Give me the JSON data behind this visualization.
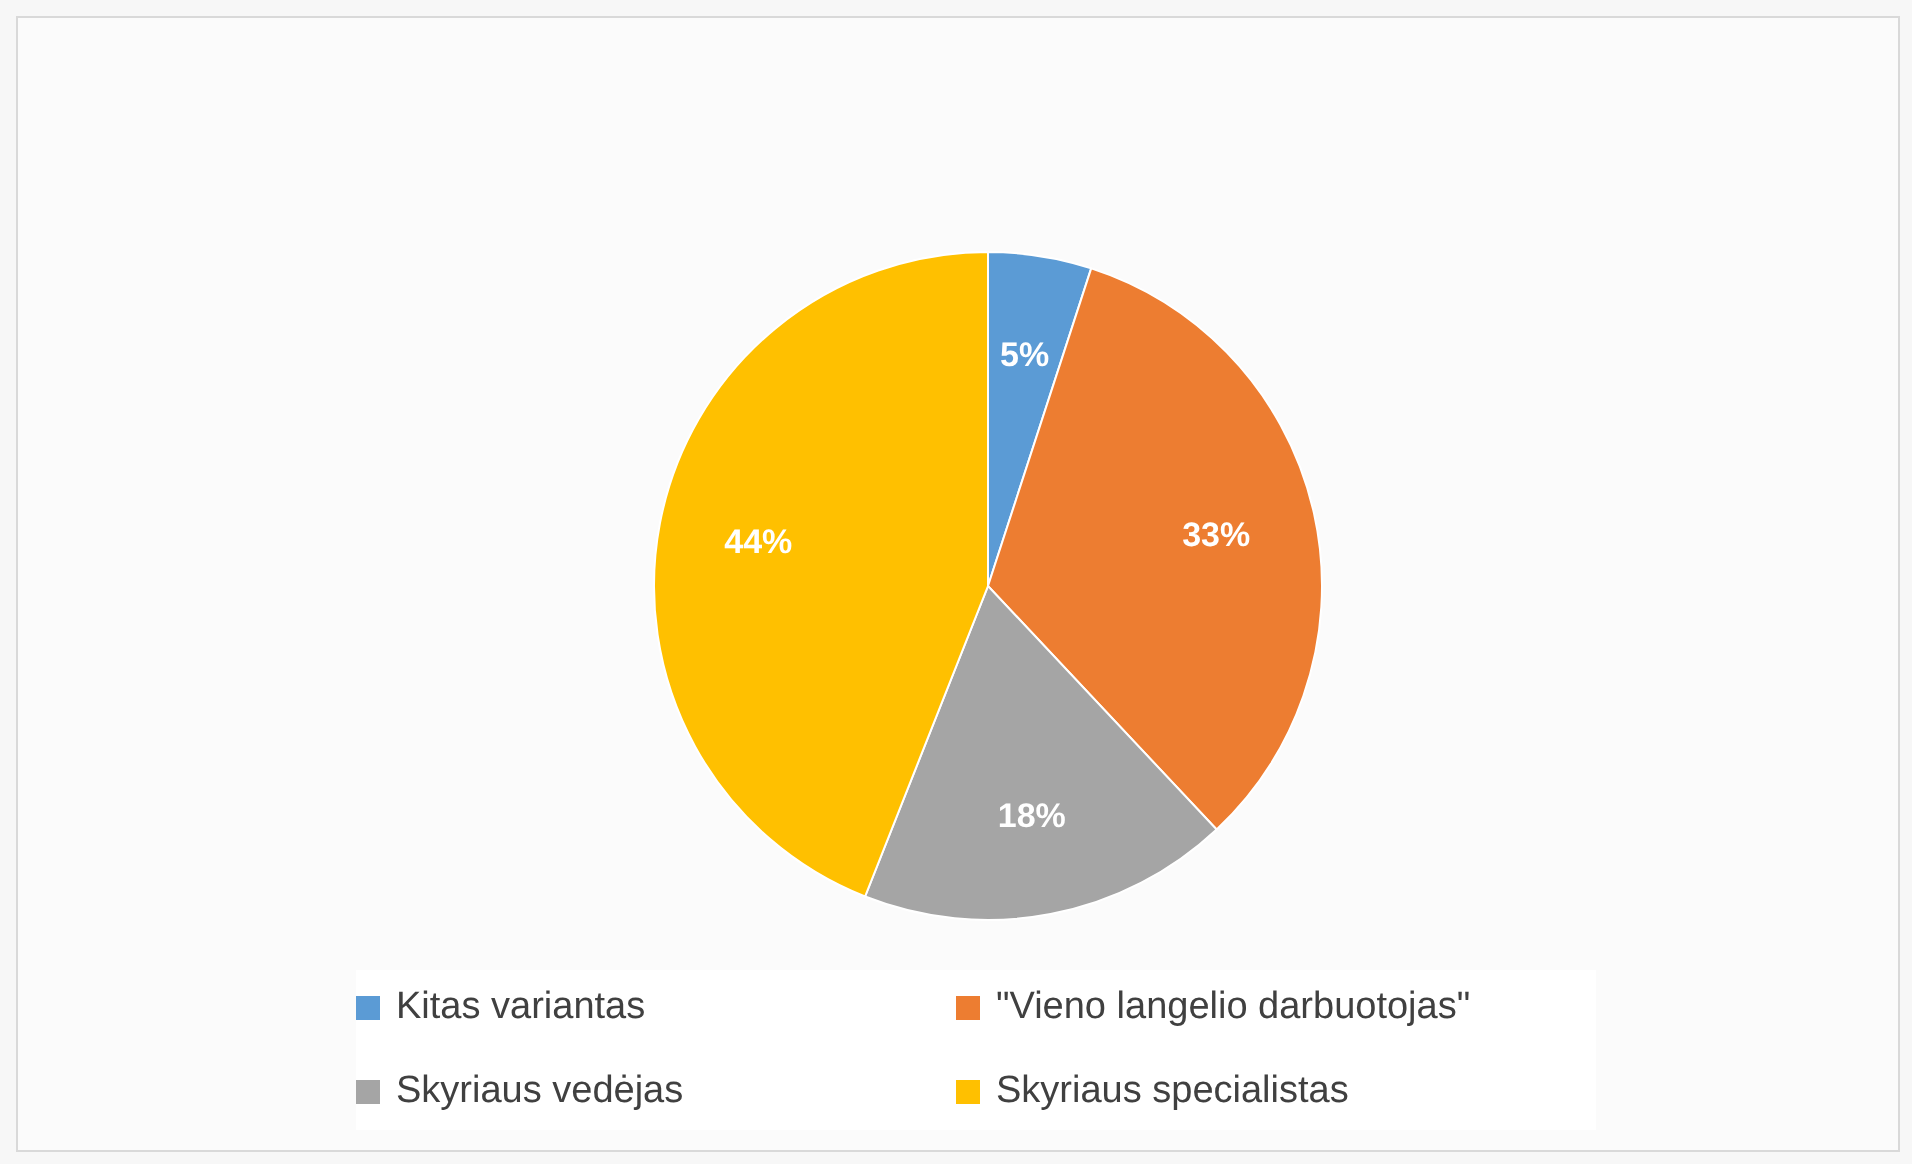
{
  "chart_data": {
    "type": "pie",
    "categories": [
      "Kitas variantas",
      "\"Vieno langelio darbuotojas\"",
      "Skyriaus vedėjas",
      "Skyriaus specialistas"
    ],
    "values": [
      5,
      33,
      18,
      44
    ],
    "colors": [
      "#5b9bd5",
      "#ed7d31",
      "#a5a5a5",
      "#ffc000"
    ],
    "value_labels": [
      "5%",
      "33%",
      "18%",
      "44%"
    ],
    "legend": "bottom"
  }
}
